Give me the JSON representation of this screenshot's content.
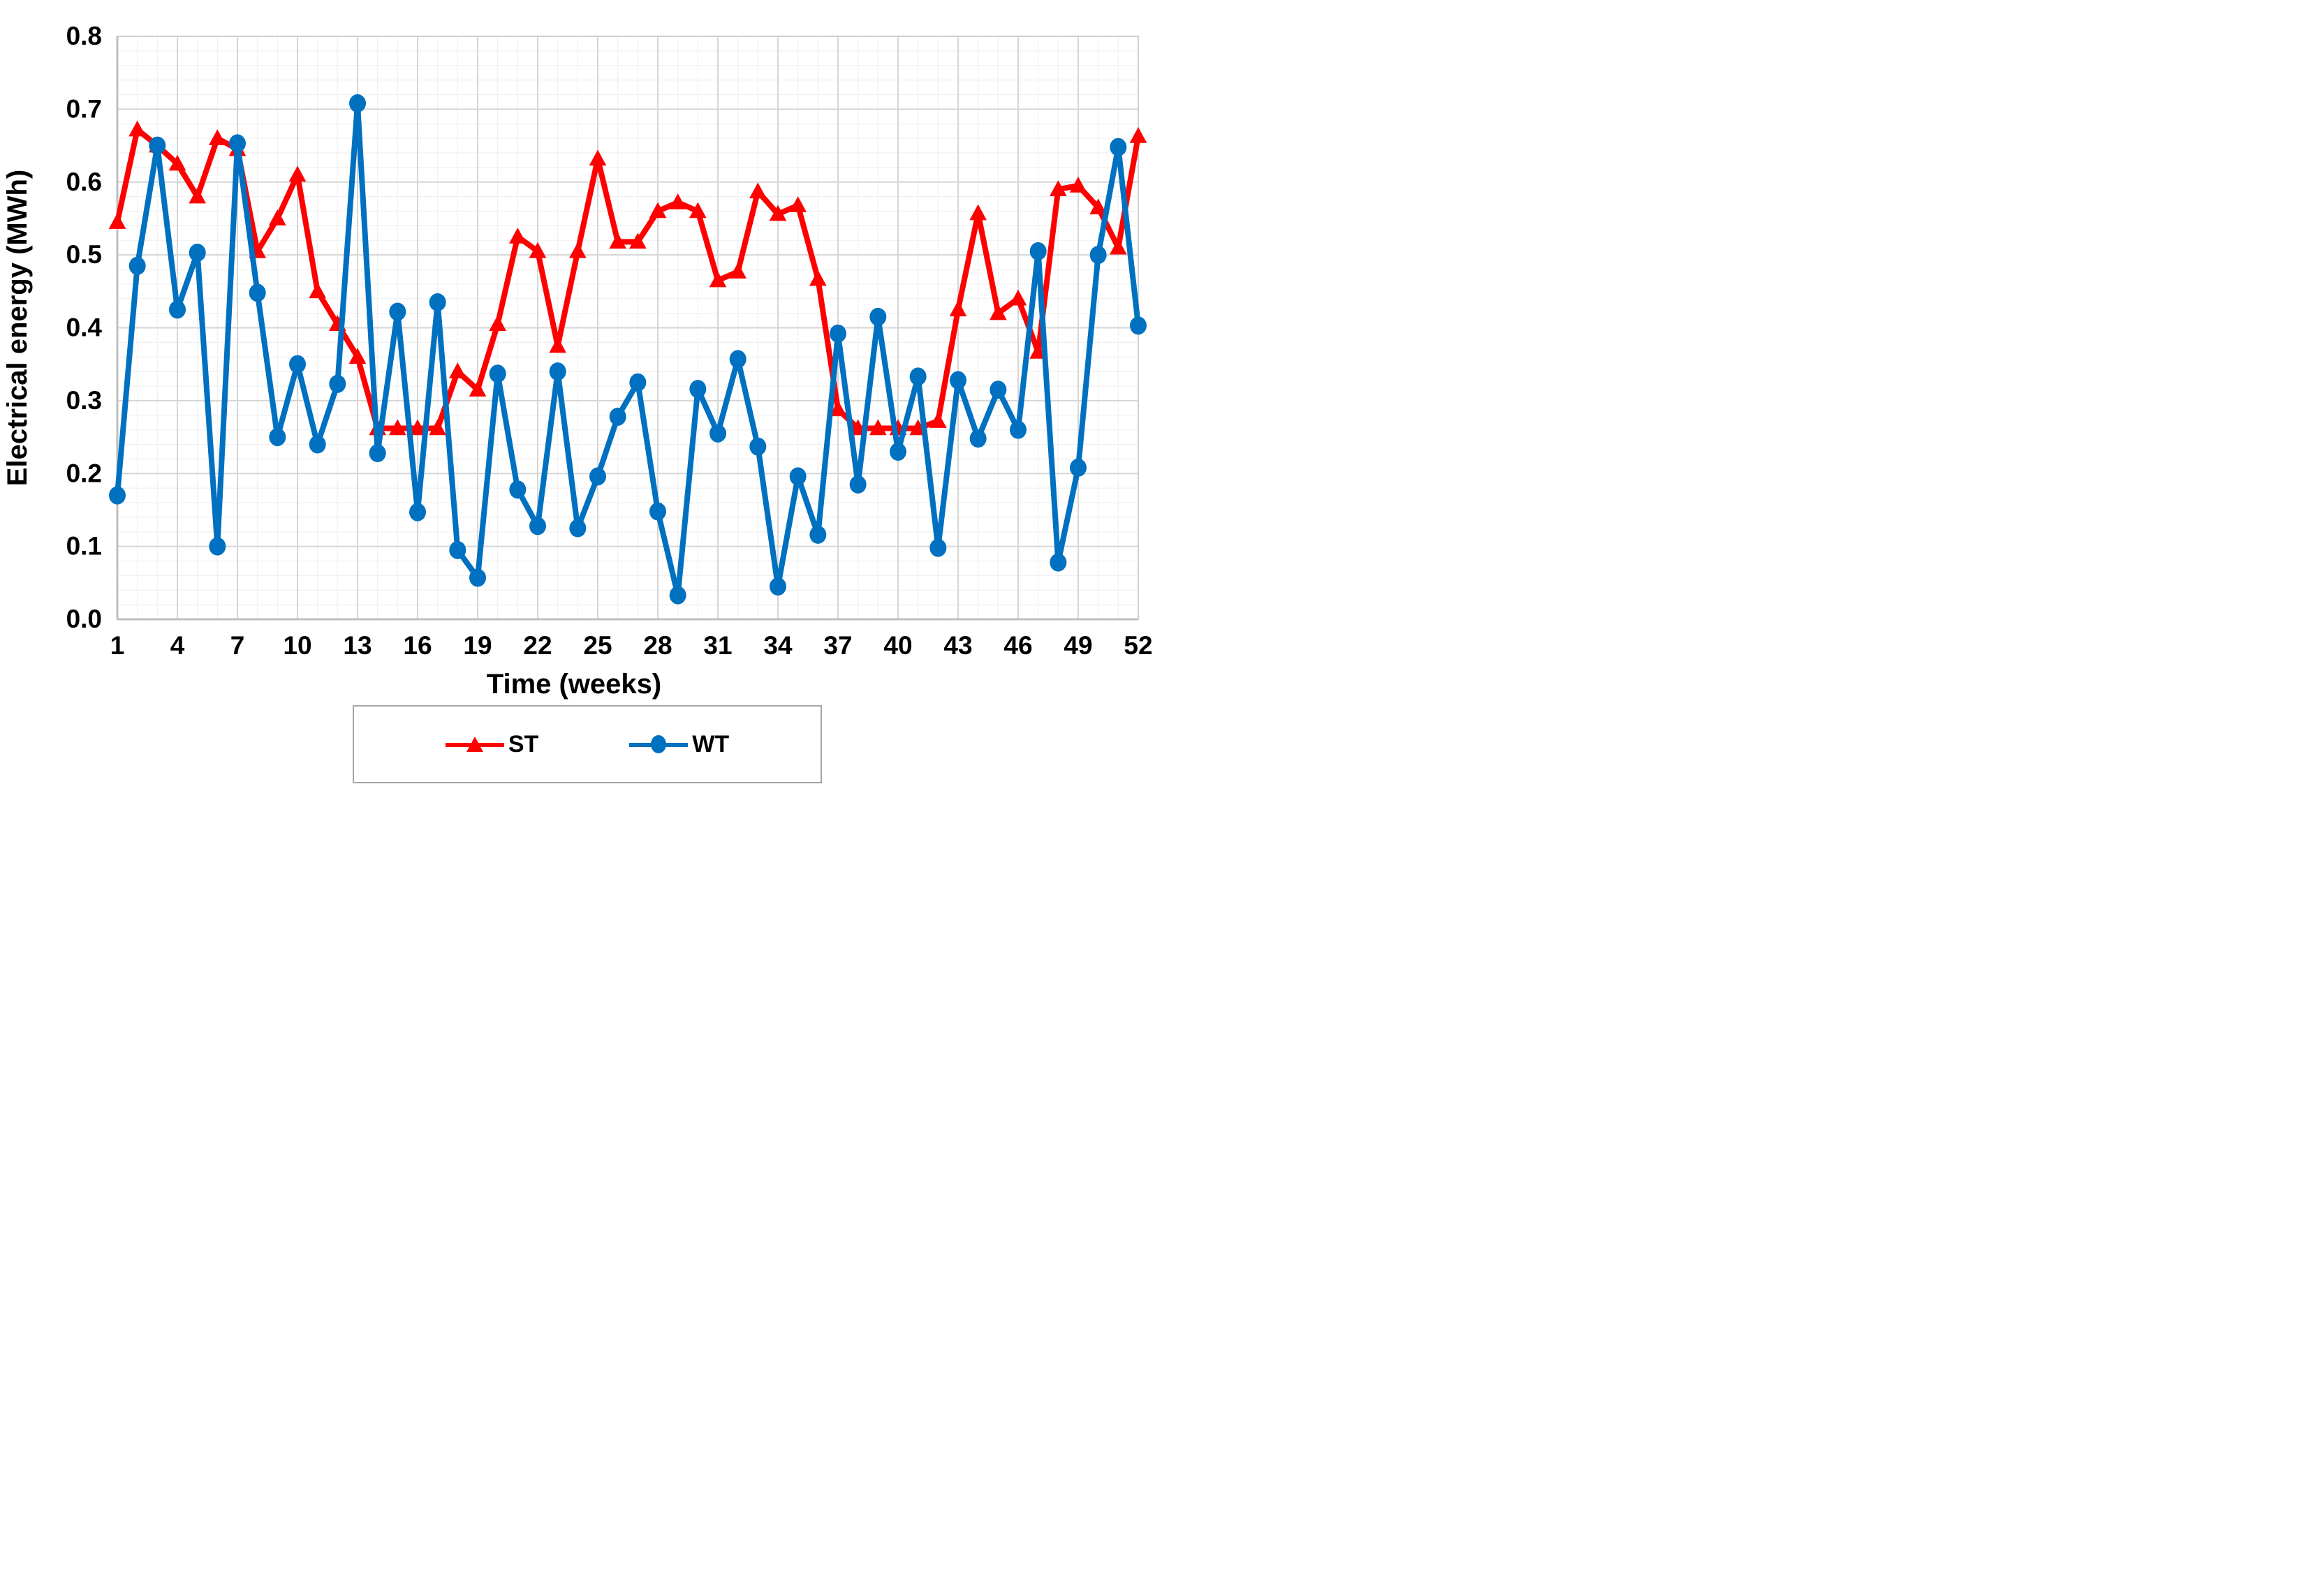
{
  "chart_data": {
    "type": "line",
    "title": "",
    "xlabel": "Time (weeks)",
    "ylabel": "Electrical energy (MWh)",
    "x_ticks": [
      1,
      4,
      7,
      10,
      13,
      16,
      19,
      22,
      25,
      28,
      31,
      34,
      37,
      40,
      43,
      46,
      49,
      52
    ],
    "y_ticks": [
      "0.0",
      "0.1",
      "0.2",
      "0.3",
      "0.4",
      "0.5",
      "0.6",
      "0.7",
      "0.8"
    ],
    "xlim": [
      1,
      52
    ],
    "ylim": [
      0.0,
      0.8
    ],
    "y_minor_step": 0.02,
    "x_minor_step": 1,
    "grid": "major+minor",
    "legend_position": "bottom",
    "weeks": [
      1,
      2,
      3,
      4,
      5,
      6,
      7,
      8,
      9,
      10,
      11,
      12,
      13,
      14,
      15,
      16,
      17,
      18,
      19,
      20,
      21,
      22,
      23,
      24,
      25,
      26,
      27,
      28,
      29,
      30,
      31,
      32,
      33,
      34,
      35,
      36,
      37,
      38,
      39,
      40,
      41,
      42,
      43,
      44,
      45,
      46,
      47,
      48,
      49,
      50,
      51,
      52
    ],
    "series": [
      {
        "name": "ST",
        "color": "#FF0000",
        "marker": "triangle",
        "values": [
          0.545,
          0.672,
          0.65,
          0.625,
          0.58,
          0.66,
          0.645,
          0.505,
          0.55,
          0.61,
          0.45,
          0.405,
          0.36,
          0.262,
          0.262,
          0.262,
          0.262,
          0.34,
          0.315,
          0.405,
          0.525,
          0.505,
          0.375,
          0.505,
          0.632,
          0.518,
          0.518,
          0.56,
          0.572,
          0.56,
          0.465,
          0.477,
          0.587,
          0.556,
          0.568,
          0.467,
          0.288,
          0.262,
          0.262,
          0.262,
          0.262,
          0.272,
          0.425,
          0.557,
          0.42,
          0.44,
          0.367,
          0.59,
          0.595,
          0.565,
          0.51,
          0.663
        ]
      },
      {
        "name": "WT",
        "color": "#0070C0",
        "marker": "circle",
        "values": [
          0.17,
          0.485,
          0.65,
          0.425,
          0.503,
          0.1,
          0.653,
          0.448,
          0.25,
          0.35,
          0.24,
          0.323,
          0.708,
          0.228,
          0.422,
          0.147,
          0.435,
          0.095,
          0.057,
          0.337,
          0.178,
          0.128,
          0.34,
          0.125,
          0.196,
          0.278,
          0.325,
          0.148,
          0.033,
          0.316,
          0.255,
          0.357,
          0.237,
          0.045,
          0.196,
          0.116,
          0.392,
          0.185,
          0.415,
          0.23,
          0.333,
          0.098,
          0.328,
          0.248,
          0.315,
          0.26,
          0.505,
          0.078,
          0.208,
          0.5,
          0.648,
          0.403
        ]
      }
    ]
  },
  "legend": {
    "items": [
      {
        "label": "ST",
        "color": "#FF0000",
        "marker": "triangle-marker-icon"
      },
      {
        "label": "WT",
        "color": "#0070C0",
        "marker": "circle-marker-icon"
      }
    ]
  },
  "style_colors": {
    "major_gridline": "#D6D6D6",
    "minor_gridline": "#F0F0F0",
    "axis_line": "#BFBFBF",
    "plot_border": "#D0D0D0",
    "text": "#000000",
    "background": "#FFFFFF"
  }
}
